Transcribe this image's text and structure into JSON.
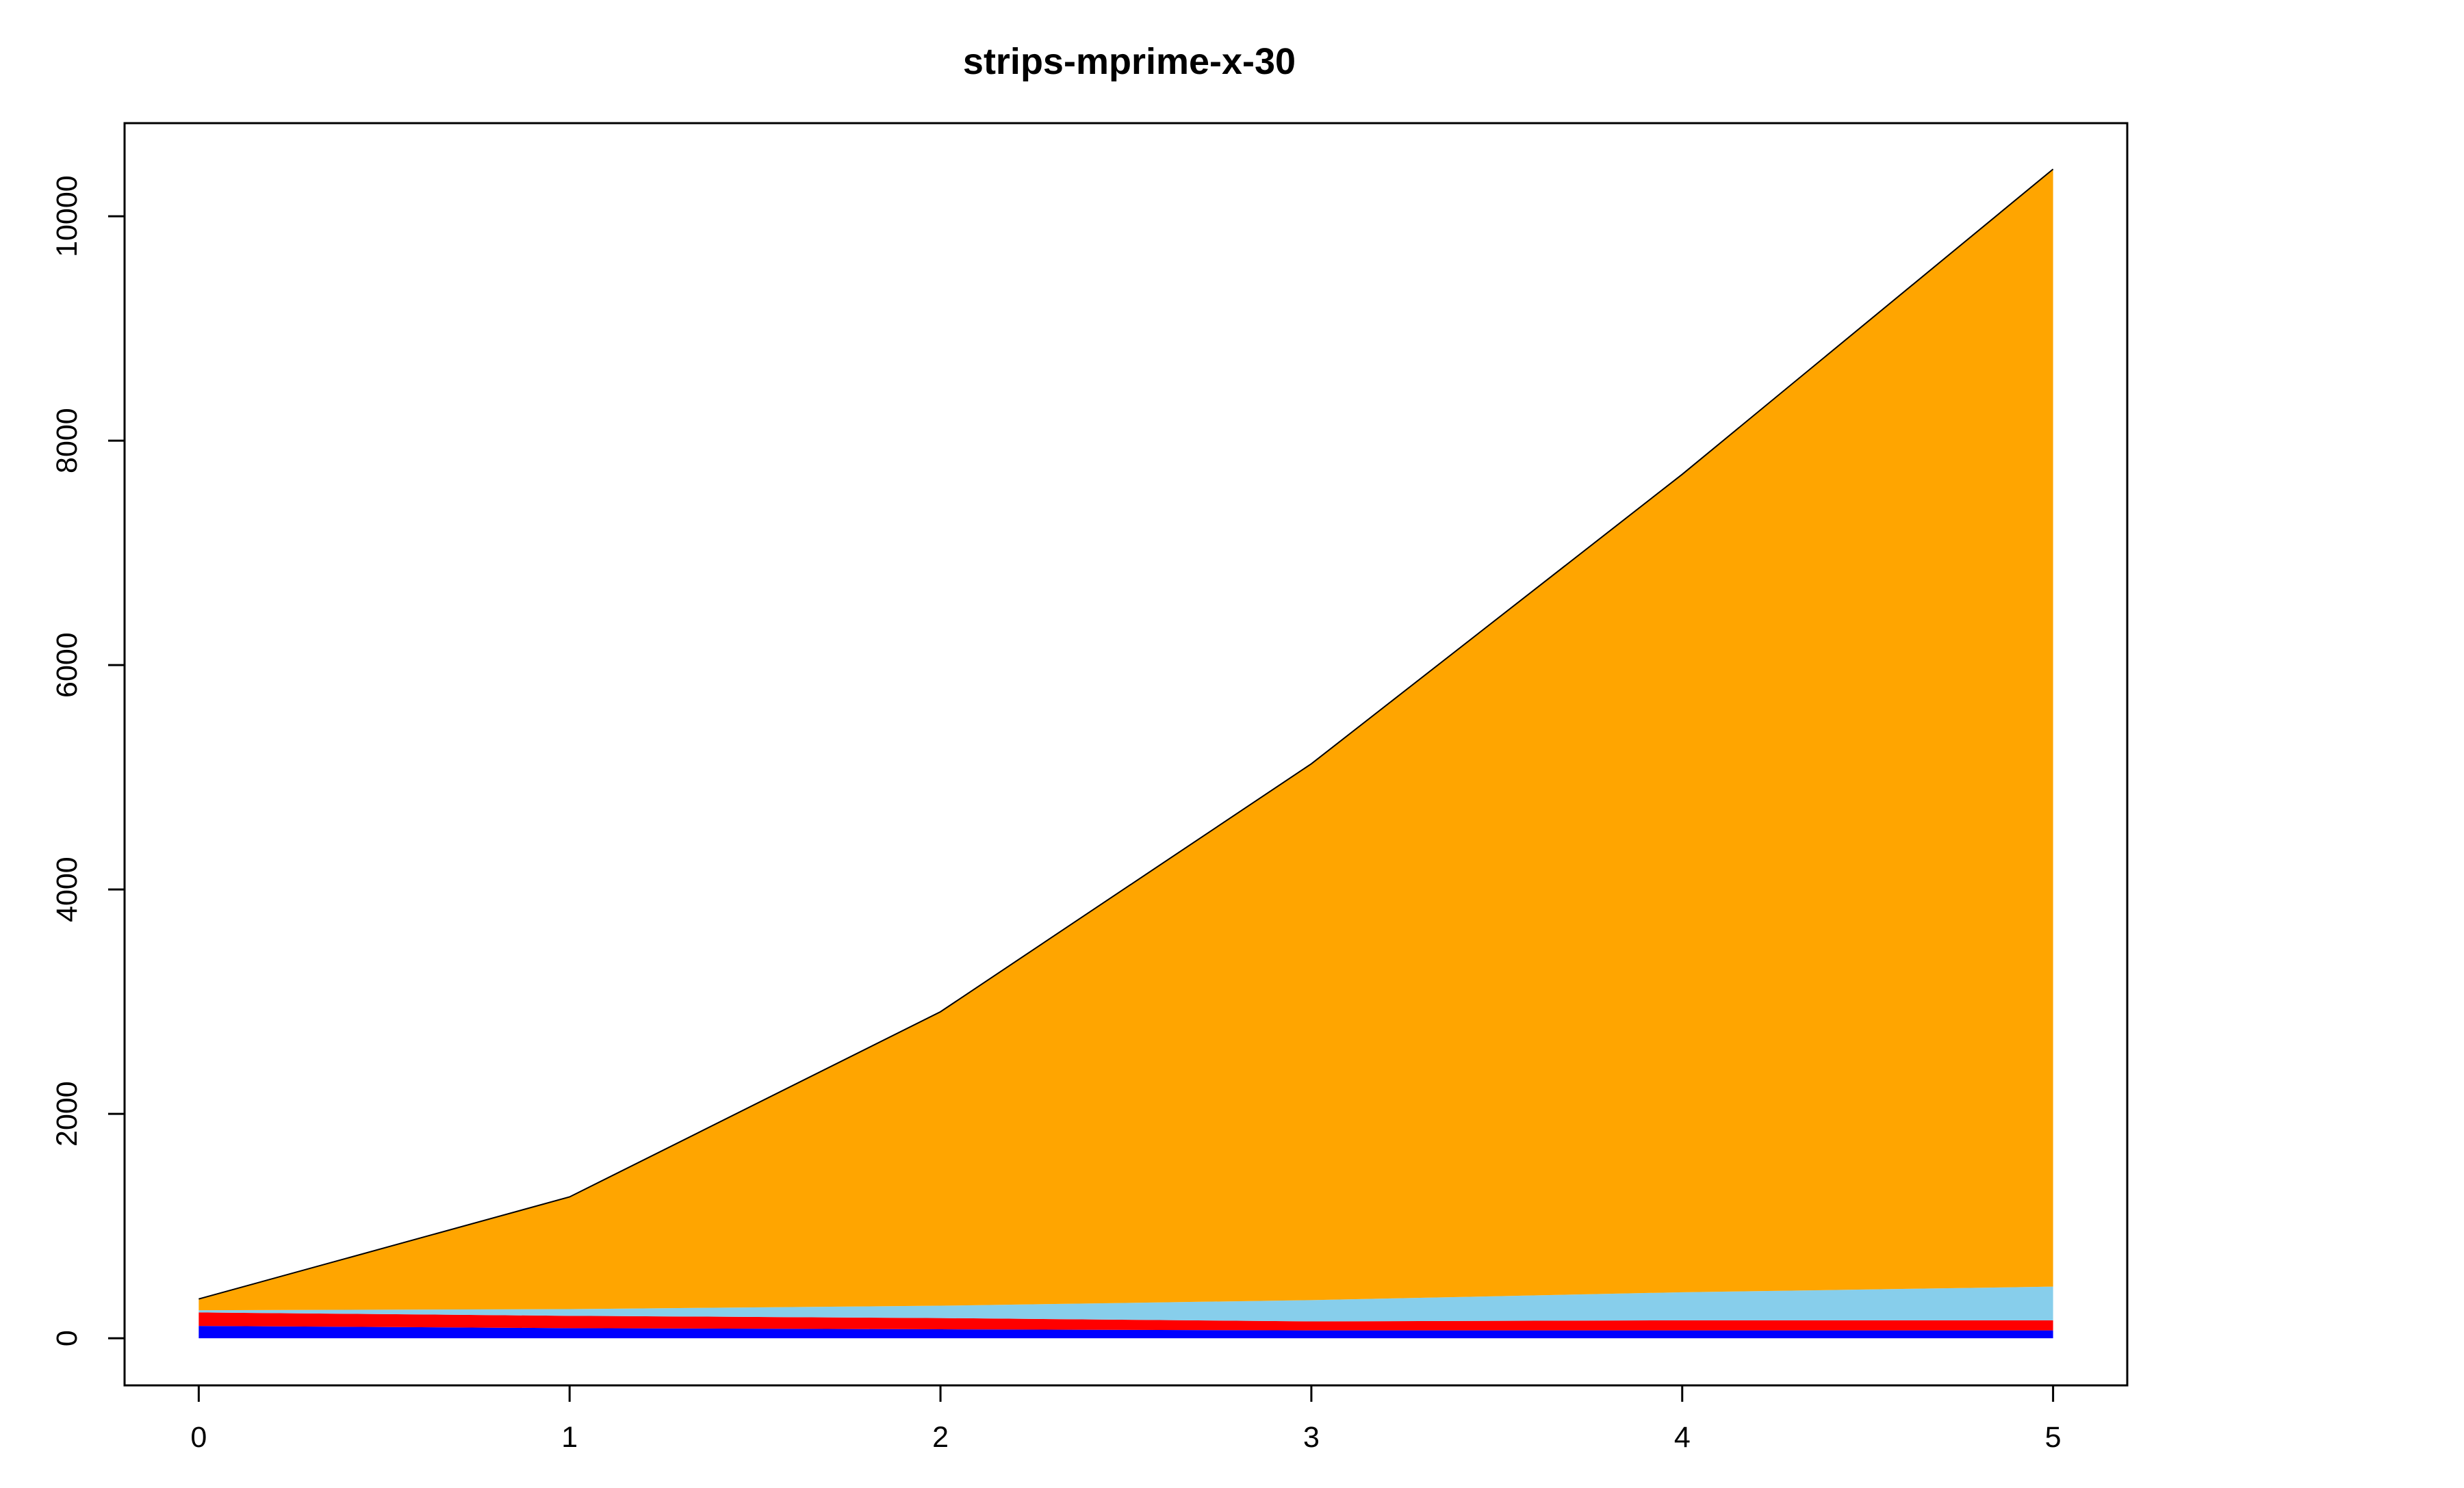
{
  "chart_data": {
    "type": "area",
    "stacked": true,
    "title": "strips-mprime-x-30",
    "xlabel": "",
    "ylabel": "",
    "x": [
      0,
      1,
      2,
      3,
      4,
      5
    ],
    "xticks": [
      0,
      1,
      2,
      3,
      4,
      5
    ],
    "yticks": [
      0,
      2000,
      4000,
      6000,
      8000,
      10000
    ],
    "xlim": [
      -0.2,
      5.2
    ],
    "ylim": [
      -420,
      10830
    ],
    "grid": false,
    "legend": "none",
    "series": [
      {
        "color": "#0000ff",
        "values": [
          110,
          90,
          80,
          70,
          70,
          70
        ]
      },
      {
        "color": "#ff0000",
        "values": [
          120,
          110,
          100,
          80,
          90,
          90
        ]
      },
      {
        "color": "#87ceeb",
        "values": [
          20,
          60,
          110,
          190,
          250,
          300
        ]
      },
      {
        "color": "#ffa500",
        "values": [
          100,
          1000,
          2620,
          4780,
          7290,
          9960
        ]
      }
    ]
  }
}
